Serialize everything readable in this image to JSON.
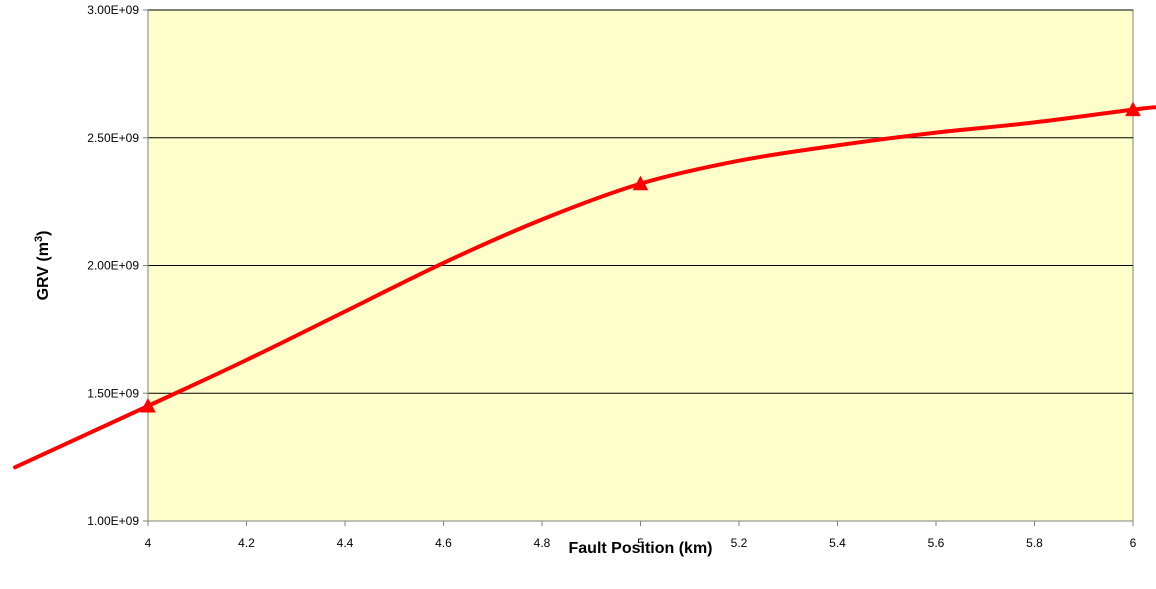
{
  "chart_data": {
    "type": "line",
    "xlabel": "Fault Position (km)",
    "ylabel_main": "GRV (m",
    "ylabel_sup": "3",
    "ylabel_close": ")",
    "xlim": [
      4,
      6
    ],
    "ylim": [
      1000000000.0,
      3000000000.0
    ],
    "x_ticks": [
      4,
      4.2,
      4.4,
      4.6,
      4.8,
      5,
      5.2,
      5.4,
      5.6,
      5.8,
      6
    ],
    "x_tick_labels": [
      "4",
      "4.2",
      "4.4",
      "4.6",
      "4.8",
      "5",
      "5.2",
      "5.4",
      "5.6",
      "5.8",
      "6"
    ],
    "y_ticks": [
      1000000000.0,
      1500000000.0,
      2000000000.0,
      2500000000.0,
      3000000000.0
    ],
    "y_tick_labels": [
      "1.00E+09",
      "1.50E+09",
      "2.00E+09",
      "2.50E+09",
      "3.00E+09"
    ],
    "grid": "horizontal",
    "series": [
      {
        "marker": "triangle",
        "x": [
          4,
          5,
          6
        ],
        "y": [
          1450000000.0,
          2320000000.0,
          2610000000.0
        ],
        "curve_x": [
          3.73,
          4.2,
          4.4,
          4.6,
          4.8,
          5.2,
          5.4,
          5.6,
          5.8,
          6.05
        ],
        "curve_y": [
          1210000000.0,
          1630000000.0,
          1820000000.0,
          2010000000.0,
          2180000000.0,
          2410000000.0,
          2470000000.0,
          2520000000.0,
          2560000000.0,
          2620000000.0
        ]
      }
    ],
    "colors": {
      "plot_background": "#ffffcc",
      "series": "#ff0000",
      "gridline": "#000000",
      "axis": "#808080"
    }
  }
}
